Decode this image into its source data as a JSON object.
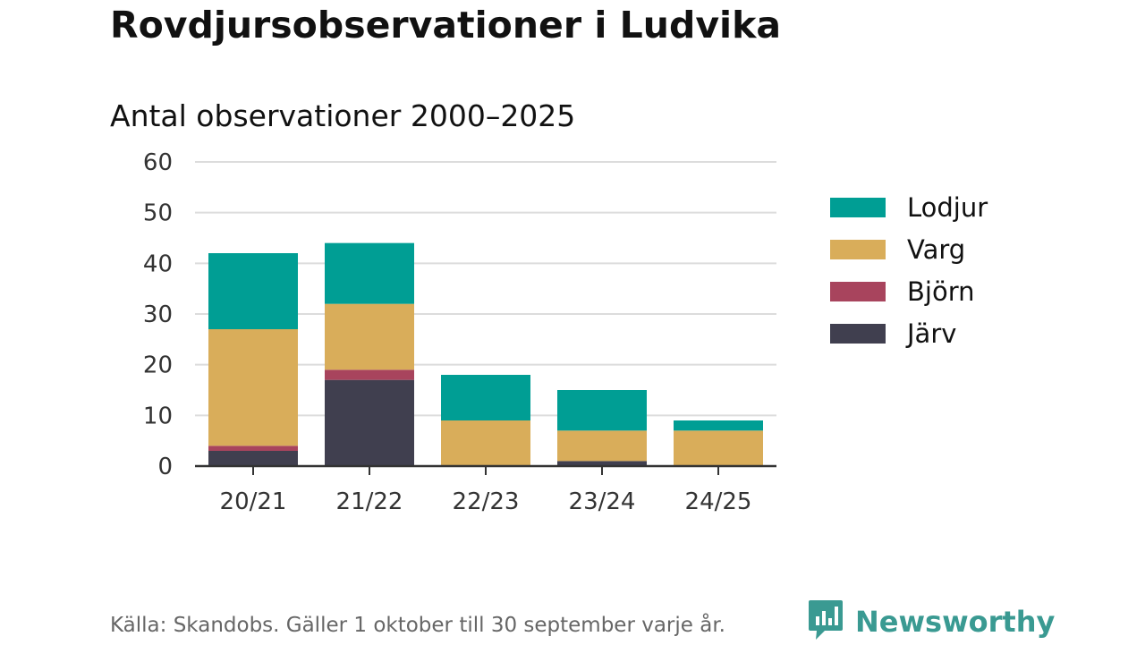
{
  "header": {
    "title": "Rovdjursobservationer i Ludvika",
    "subtitle": "Antal observationer 2000–2025"
  },
  "chart_data": {
    "type": "bar",
    "stacked": true,
    "title": "Rovdjursobservationer i Ludvika",
    "subtitle": "Antal observationer 2000–2025",
    "xlabel": "",
    "ylabel": "",
    "categories": [
      "20/21",
      "21/22",
      "22/23",
      "23/24",
      "24/25"
    ],
    "ylim": [
      0,
      60
    ],
    "yticks": [
      0,
      10,
      20,
      30,
      40,
      50,
      60
    ],
    "grid": true,
    "legend_position": "right",
    "series": [
      {
        "name": "Järv",
        "color": "#403f4f",
        "values": [
          3,
          17,
          0,
          1,
          0
        ]
      },
      {
        "name": "Björn",
        "color": "#a8445d",
        "values": [
          1,
          2,
          0,
          0,
          0
        ]
      },
      {
        "name": "Varg",
        "color": "#d9ad5a",
        "values": [
          23,
          13,
          9,
          6,
          7
        ]
      },
      {
        "name": "Lodjur",
        "color": "#009e94",
        "values": [
          15,
          12,
          9,
          8,
          2
        ]
      }
    ]
  },
  "legend": {
    "items": [
      {
        "label": "Lodjur",
        "color": "#009e94"
      },
      {
        "label": "Varg",
        "color": "#d9ad5a"
      },
      {
        "label": "Björn",
        "color": "#a8445d"
      },
      {
        "label": "Järv",
        "color": "#403f4f"
      }
    ]
  },
  "footer": {
    "source": "Källa: Skandobs. Gäller 1 oktober till 30 september varje år."
  },
  "brand": {
    "name": "Newsworthy",
    "icon": "newsworthy-logo-icon",
    "color": "#3a9a92"
  }
}
